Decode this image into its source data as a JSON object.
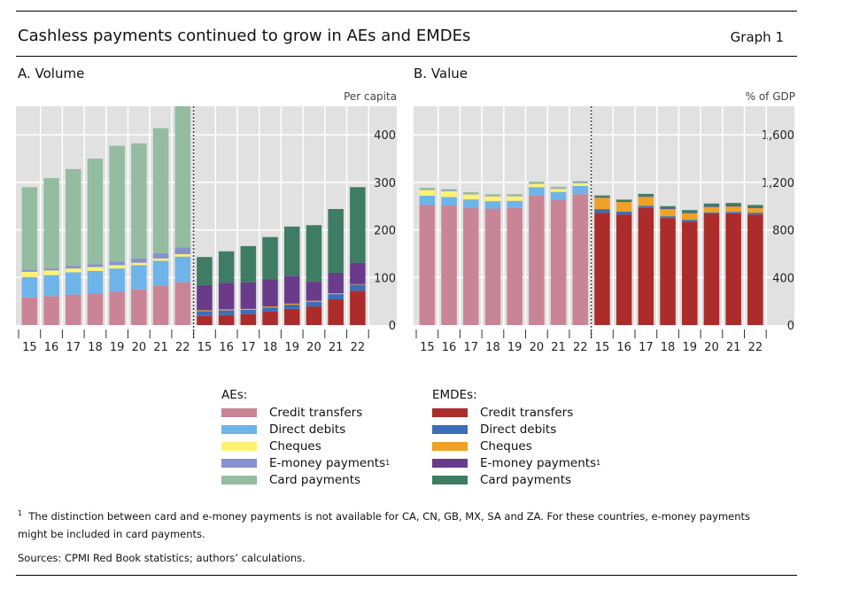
{
  "header": {
    "title": "Cashless payments continued to grow in AEs and EMDEs",
    "graph_label": "Graph 1"
  },
  "chart_data": [
    {
      "type": "bar",
      "stacked": true,
      "title": "A. Volume",
      "ylabel": "Per capita",
      "ylim": [
        0,
        460
      ],
      "yticks": [
        0,
        100,
        200,
        300,
        400
      ],
      "ytick_labels": [
        "0",
        "100",
        "200",
        "300",
        "400"
      ],
      "groups": [
        {
          "name": "AEs",
          "categories": [
            "15",
            "16",
            "17",
            "18",
            "19",
            "20",
            "21",
            "22"
          ],
          "series": [
            {
              "name": "Credit transfers",
              "values": [
                58,
                61,
                64,
                66,
                70,
                75,
                82,
                90
              ]
            },
            {
              "name": "Direct debits",
              "values": [
                43,
                44,
                47,
                48,
                49,
                51,
                53,
                54
              ]
            },
            {
              "name": "Cheques",
              "values": [
                11,
                10,
                8,
                8,
                7,
                5,
                5,
                5
              ]
            },
            {
              "name": "E-money payments",
              "values": [
                4,
                4,
                5,
                6,
                7,
                9,
                11,
                14
              ]
            },
            {
              "name": "Card payments",
              "values": [
                174,
                190,
                204,
                222,
                244,
                242,
                263,
                297
              ]
            }
          ]
        },
        {
          "name": "EMDEs",
          "categories": [
            "15",
            "16",
            "17",
            "18",
            "19",
            "20",
            "21",
            "22"
          ],
          "series": [
            {
              "name": "Credit transfers",
              "values": [
                19,
                21,
                23,
                28,
                34,
                39,
                54,
                72
              ]
            },
            {
              "name": "Direct debits",
              "values": [
                10,
                10,
                9,
                9,
                9,
                10,
                11,
                13
              ]
            },
            {
              "name": "Cheques",
              "values": [
                2,
                2,
                2,
                2,
                2,
                2,
                2,
                1
              ]
            },
            {
              "name": "E-money payments",
              "values": [
                53,
                56,
                56,
                57,
                58,
                40,
                43,
                45
              ]
            },
            {
              "name": "Card payments",
              "values": [
                59,
                66,
                76,
                89,
                104,
                119,
                134,
                159
              ]
            }
          ]
        }
      ]
    },
    {
      "type": "bar",
      "stacked": true,
      "title": "B. Value",
      "ylabel": "% of GDP",
      "ylim": [
        0,
        1840
      ],
      "yticks": [
        0,
        400,
        800,
        1200,
        1600
      ],
      "ytick_labels": [
        "0",
        "400",
        "800",
        "1,200",
        "1,600"
      ],
      "groups": [
        {
          "name": "AEs",
          "categories": [
            "15",
            "16",
            "17",
            "18",
            "19",
            "20",
            "21",
            "22"
          ],
          "series": [
            {
              "name": "Credit transfers",
              "values": [
                1010,
                1005,
                985,
                980,
                985,
                1090,
                1055,
                1100
              ]
            },
            {
              "name": "Direct debits",
              "values": [
                78,
                72,
                72,
                62,
                60,
                70,
                65,
                70
              ]
            },
            {
              "name": "Cheques",
              "values": [
                48,
                48,
                42,
                40,
                38,
                28,
                25,
                22
              ]
            },
            {
              "name": "E-money payments",
              "values": [
                4,
                4,
                4,
                4,
                4,
                4,
                4,
                4
              ]
            },
            {
              "name": "Card payments",
              "values": [
                14,
                14,
                14,
                14,
                14,
                14,
                14,
                15
              ]
            }
          ]
        },
        {
          "name": "EMDEs",
          "categories": [
            "15",
            "16",
            "17",
            "18",
            "19",
            "20",
            "21",
            "22"
          ],
          "series": [
            {
              "name": "Credit transfers",
              "values": [
                945,
                930,
                985,
                900,
                870,
                935,
                940,
                930
              ]
            },
            {
              "name": "Direct debits",
              "values": [
                30,
                25,
                18,
                15,
                15,
                12,
                12,
                15
              ]
            },
            {
              "name": "Cheques",
              "values": [
                95,
                80,
                75,
                60,
                55,
                45,
                45,
                38
              ]
            },
            {
              "name": "E-money payments",
              "values": [
                5,
                5,
                5,
                5,
                5,
                5,
                5,
                5
              ]
            },
            {
              "name": "Card payments",
              "values": [
                15,
                15,
                20,
                20,
                22,
                25,
                25,
                22
              ]
            }
          ]
        }
      ]
    }
  ],
  "colors": {
    "AEs": [
      "#c98595",
      "#6eb4e8",
      "#fef273",
      "#8691ce",
      "#94bca0"
    ],
    "EMDEs": [
      "#ac2b2b",
      "#3b6eb7",
      "#eea227",
      "#6a3b8b",
      "#3e7c63"
    ],
    "plot_bg": "#e1e1e1"
  },
  "legend": {
    "AEs": {
      "heading": "AEs:",
      "items": [
        "Credit transfers",
        "Direct debits",
        "Cheques",
        "E-money payments",
        "Card payments"
      ]
    },
    "EMDEs": {
      "heading": "EMDEs:",
      "items": [
        "Credit transfers",
        "Direct debits",
        "Cheques",
        "E-money payments",
        "Card payments"
      ]
    },
    "footnote_marker": "1"
  },
  "footer": {
    "footnote_marker": "1",
    "footnote_line1": "The distinction between card and e-money payments is not available for CA, CN, GB, MX, SA and ZA. For these countries, e-money payments",
    "footnote_line2": "might be included in card payments.",
    "sources": "Sources: CPMI Red Book statistics; authors’ calculations."
  }
}
